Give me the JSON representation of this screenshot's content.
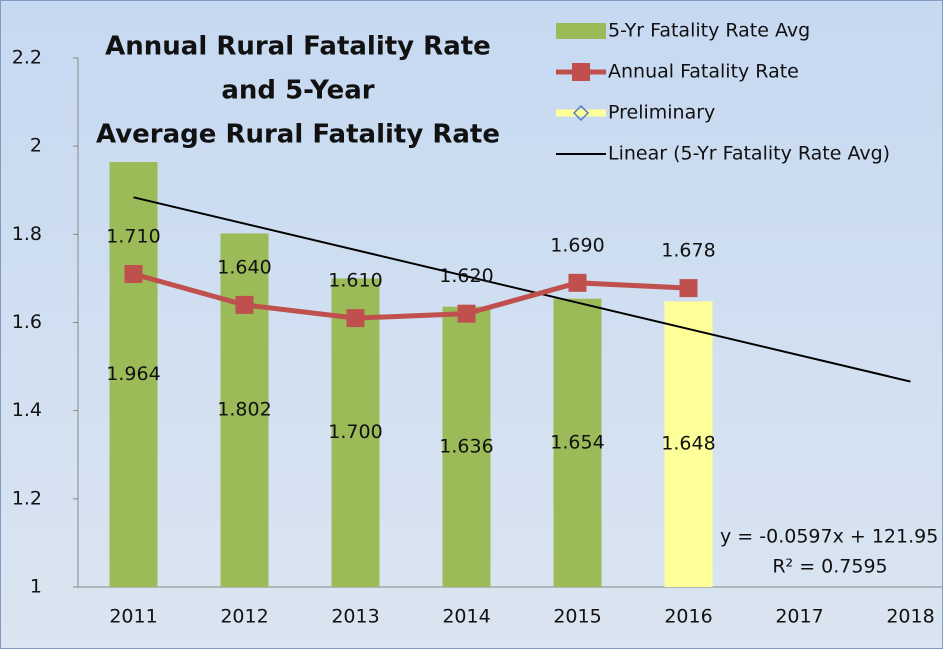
{
  "chart_data": {
    "type": "bar-line",
    "title": [
      "Annual Rural Fatality Rate",
      "and 5-Year",
      "Average Rural Fatality Rate"
    ],
    "categories": [
      "2011",
      "2012",
      "2013",
      "2014",
      "2015",
      "2016",
      "2017",
      "2018"
    ],
    "ylim": [
      1,
      2.2
    ],
    "yticks": [
      1,
      1.2,
      1.4,
      1.6,
      1.8,
      2,
      2.2
    ],
    "series": [
      {
        "name": "5-Yr Fatality Rate Avg",
        "kind": "bar",
        "color": "#9bbb59",
        "values": [
          1.964,
          1.802,
          1.7,
          1.636,
          1.654,
          null,
          null,
          null
        ],
        "value_labels": [
          "1.964",
          "1.802",
          "1.700",
          "1.636",
          "1.654",
          null,
          null,
          null
        ]
      },
      {
        "name": "Annual Fatality Rate",
        "kind": "line",
        "color": "#c0504d",
        "values": [
          1.71,
          1.64,
          1.61,
          1.62,
          1.69,
          1.678,
          null,
          null
        ],
        "value_labels": [
          "1.710",
          "1.640",
          "1.610",
          "1.620",
          "1.690",
          "1.678",
          null,
          null
        ]
      },
      {
        "name": "Preliminary",
        "kind": "bar",
        "color": "#ffff99",
        "values": [
          null,
          null,
          null,
          null,
          null,
          1.648,
          null,
          null
        ],
        "value_labels": [
          null,
          null,
          null,
          null,
          null,
          "1.648",
          null,
          null
        ]
      }
    ],
    "trendline": {
      "name": "Linear (5-Yr Fatality Rate Avg)",
      "color": "#000000",
      "start": 1.884,
      "end": 1.466,
      "equation": "y = -0.0597x + 121.95",
      "r2": "R² = 0.7595"
    },
    "legend": "top-right"
  }
}
